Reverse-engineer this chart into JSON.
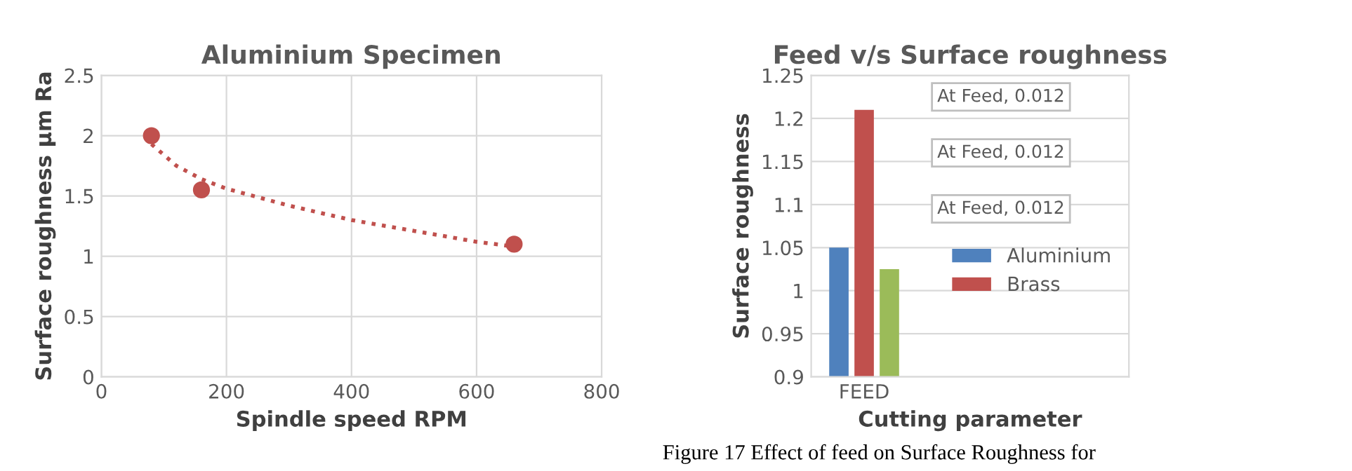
{
  "chart_data": [
    {
      "type": "scatter",
      "title": "Aluminium Specimen",
      "xlabel": "Spindle speed RPM",
      "ylabel": "Surface roughness µm Ra",
      "series": [
        {
          "type": "scatter",
          "color": "#c0504d",
          "marker": "circle",
          "x": [
            80,
            160,
            660
          ],
          "values": [
            2.0,
            1.55,
            1.1
          ]
        },
        {
          "type": "line",
          "color": "#c0504d",
          "marker": "none",
          "line_style": "dotted",
          "x": [
            80,
            120,
            160,
            200,
            300,
            400,
            500,
            600,
            660
          ],
          "values": [
            1.93,
            1.75,
            1.64,
            1.56,
            1.42,
            1.3,
            1.21,
            1.12,
            1.08
          ]
        }
      ],
      "xlim": [
        0,
        800
      ],
      "xticks": [
        0,
        200,
        400,
        600,
        800
      ],
      "ylim": [
        0,
        2.5
      ],
      "yticks": [
        0,
        0.5,
        1,
        1.5,
        2,
        2.5
      ],
      "grid": true
    },
    {
      "type": "bar",
      "title": "Feed v/s Surface roughness",
      "xlabel": "Cutting parameter",
      "ylabel": "Surface roughness",
      "categories": [
        "FEED"
      ],
      "series": [
        {
          "name": "Aluminium",
          "color": "#4f81bd",
          "values": [
            1.05
          ]
        },
        {
          "name": "Brass",
          "color": "#c0504d",
          "values": [
            1.21
          ]
        },
        {
          "color": "#9bbb59",
          "values": [
            1.025
          ]
        }
      ],
      "ylim": [
        0.9,
        1.25
      ],
      "yticks": [
        0.9,
        0.95,
        1,
        1.05,
        1.1,
        1.15,
        1.2,
        1.25
      ],
      "grid": "y",
      "legend": "right",
      "annotations": [
        "At Feed, 0.012",
        "At Feed, 0.012",
        "At Feed, 0.012",
        "Figure 17 Effect of feed on Surface Roughness for"
      ]
    }
  ]
}
